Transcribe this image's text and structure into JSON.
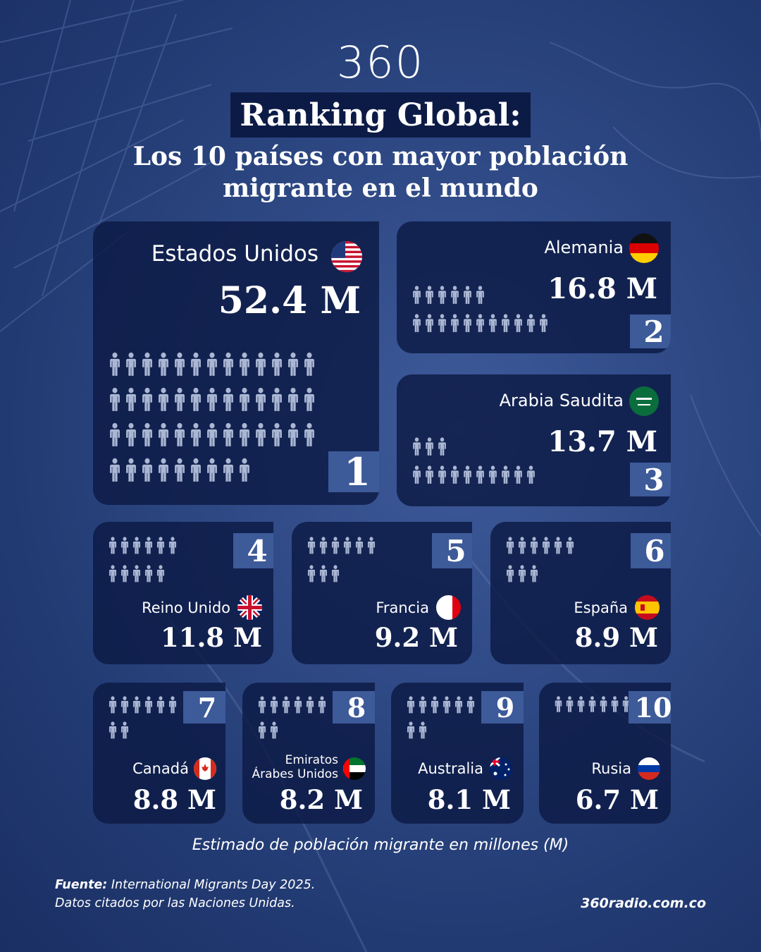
{
  "brand": {
    "logo": "360",
    "website": "360radio.com.co"
  },
  "header": {
    "title": "Ranking Global:",
    "subtitle_line1": "Los 10 países con mayor población",
    "subtitle_line2": "migrante en el mundo"
  },
  "colors": {
    "card": "#0c1a44",
    "rank_badge": "#3d5a99",
    "person_icon": "#aab6d3",
    "background": "#2a4580"
  },
  "countries": [
    {
      "rank": "1",
      "name": "Estados Unidos",
      "value": "52.4 M",
      "millions": 52.4,
      "icons": 48,
      "flag": "usa-flag-icon"
    },
    {
      "rank": "2",
      "name": "Alemania",
      "value": "16.8 M",
      "millions": 16.8,
      "icons": 17,
      "flag": "germany-flag-icon"
    },
    {
      "rank": "3",
      "name": "Arabia Saudita",
      "value": "13.7 M",
      "millions": 13.7,
      "icons": 13,
      "flag": "saudi-arabia-flag-icon"
    },
    {
      "rank": "4",
      "name": "Reino Unido",
      "value": "11.8 M",
      "millions": 11.8,
      "icons": 11,
      "flag": "uk-flag-icon"
    },
    {
      "rank": "5",
      "name": "Francia",
      "value": "9.2 M",
      "millions": 9.2,
      "icons": 9,
      "flag": "france-flag-icon"
    },
    {
      "rank": "6",
      "name": "España",
      "value": "8.9 M",
      "millions": 8.9,
      "icons": 9,
      "flag": "spain-flag-icon"
    },
    {
      "rank": "7",
      "name": "Canadá",
      "value": "8.8 M",
      "millions": 8.8,
      "icons": 8,
      "flag": "canada-flag-icon"
    },
    {
      "rank": "8",
      "name_line1": "Emiratos",
      "name_line2": "Árabes Unidos",
      "value": "8.2 M",
      "millions": 8.2,
      "icons": 8,
      "flag": "uae-flag-icon"
    },
    {
      "rank": "9",
      "name": "Australia",
      "value": "8.1 M",
      "millions": 8.1,
      "icons": 8,
      "flag": "australia-flag-icon"
    },
    {
      "rank": "10",
      "name": "Rusia",
      "value": "6.7 M",
      "millions": 6.7,
      "icons": 7,
      "flag": "russia-flag-icon"
    }
  ],
  "footer": {
    "note": "Estimado de población migrante en millones (M)",
    "source_label": "Fuente:",
    "source_text": " International Migrants Day 2025.",
    "source_line2": "Datos citados por las Naciones Unidas."
  }
}
